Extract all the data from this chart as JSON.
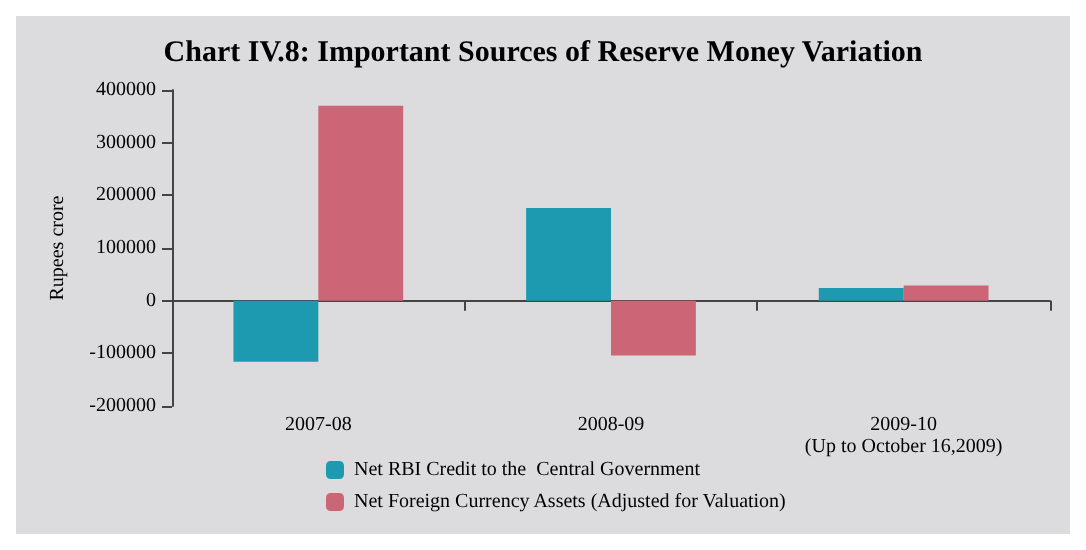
{
  "chart_data": {
    "type": "bar",
    "title": "Chart IV.8: Important Sources of Reserve Money Variation",
    "ylabel": "Rupees crore",
    "categories": [
      "2007-08",
      "2008-09",
      "2009-10\n(Up to October 16,2009)"
    ],
    "series": [
      {
        "name": "Net RBI Credit to the  Central Government",
        "color": "#1e9ab0",
        "values": [
          -116000,
          176000,
          24000
        ]
      },
      {
        "name": "Net Foreign Currency Assets (Adjusted for Valuation)",
        "color": "#cc6677",
        "values": [
          370000,
          -104000,
          29000
        ]
      }
    ],
    "ylim": [
      -200000,
      400000
    ],
    "yticks": [
      -200000,
      -100000,
      0,
      100000,
      200000,
      300000,
      400000
    ],
    "legend": "bottom"
  }
}
